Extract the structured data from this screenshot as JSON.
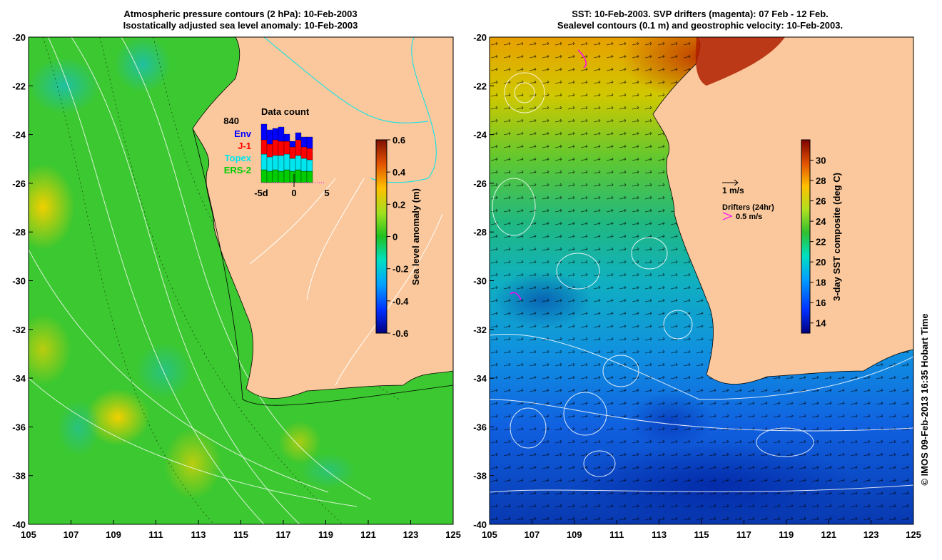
{
  "left_panel": {
    "title_line1": "Atmospheric pressure contours (2 hPa): 10-Feb-2003",
    "title_line2": "Isostatically adjusted sea level anomaly: 10-Feb-2003",
    "x_ticks": [
      "105",
      "107",
      "109",
      "111",
      "113",
      "115",
      "117",
      "119",
      "121",
      "123",
      "125"
    ],
    "y_ticks": [
      "-20",
      "-22",
      "-24",
      "-26",
      "-28",
      "-30",
      "-32",
      "-34",
      "-36",
      "-38",
      "-40"
    ],
    "colorbar": {
      "label": "Sea level anomaly (m)",
      "ticks": [
        "0.6",
        "0.4",
        "0.2",
        "0",
        "-0.2",
        "-0.4",
        "-0.6"
      ],
      "range": [
        -0.6,
        0.6
      ]
    },
    "inset": {
      "title": "Data count",
      "max_count": "840",
      "legend": [
        {
          "label": "Env",
          "color": "#0000ff"
        },
        {
          "label": "J-1",
          "color": "#ff0000"
        },
        {
          "label": "Topex",
          "color": "#00e5ee"
        },
        {
          "label": "ERS-2",
          "color": "#00cc00"
        }
      ],
      "x_ticks": [
        "-5d",
        "0",
        "5"
      ]
    }
  },
  "right_panel": {
    "title_line1": "SST: 10-Feb-2003. SVP drifters (magenta): 07 Feb - 12 Feb.",
    "title_line2": "Sealevel contours (0.1 m) and geostrophic velocity: 10-Feb-2003.",
    "x_ticks": [
      "105",
      "107",
      "109",
      "111",
      "113",
      "115",
      "117",
      "119",
      "121",
      "123",
      "125"
    ],
    "y_ticks": [
      "-20",
      "-22",
      "-24",
      "-26",
      "-28",
      "-30",
      "-32",
      "-34",
      "-36",
      "-38",
      "-40"
    ],
    "colorbar": {
      "label": "3-day SST composite (deg C)",
      "ticks": [
        "30",
        "28",
        "26",
        "24",
        "22",
        "20",
        "18",
        "16",
        "14"
      ],
      "range": [
        13,
        32
      ]
    },
    "velocity_legend": "1 m/s",
    "drifter_legend_title": "Drifters (24hr)",
    "drifter_legend_value": "0.5 m/s"
  },
  "credit": "© IMOS 09-Feb-2013 16:35 Hobart Time",
  "colors": {
    "land": "#fac89c",
    "magenta": "#ff00ff"
  }
}
